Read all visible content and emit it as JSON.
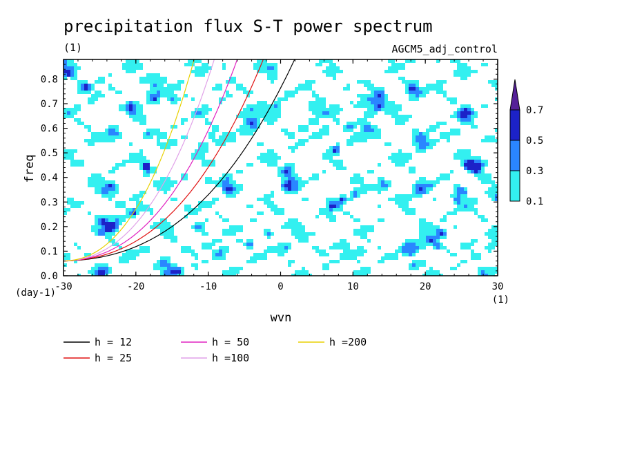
{
  "chart_data": {
    "type": "heatmap",
    "title": "precipitation flux S-T power spectrum",
    "subtitle_left": "(1)",
    "subtitle_right": "AGCM5_adj_control",
    "xlabel": "wvn",
    "ylabel": "freq",
    "x_unit": "(1)",
    "y_unit": "(day-1)",
    "xlim": [
      -30,
      30
    ],
    "ylim": [
      0.0,
      0.88
    ],
    "xticks": [
      "-30",
      "-20",
      "-10",
      "0",
      "10",
      "20",
      "30"
    ],
    "yticks": [
      "0.0",
      "0.1",
      "0.2",
      "0.3",
      "0.4",
      "0.5",
      "0.6",
      "0.7",
      "0.8"
    ],
    "colorbar": {
      "levels": [
        "0.1",
        "0.3",
        "0.5",
        "0.7"
      ],
      "colors": [
        "#33f0f0",
        "#2a86ff",
        "#1c22c8",
        "#552098"
      ]
    },
    "dispersion_curves": [
      {
        "name": "h = 12",
        "h": 12,
        "color": "#000000"
      },
      {
        "name": "h = 25",
        "h": 25,
        "color": "#e01010"
      },
      {
        "name": "h = 50",
        "h": 50,
        "color": "#e020c0"
      },
      {
        "name": "h =100",
        "h": 100,
        "color": "#e0a0e8"
      },
      {
        "name": "h =200",
        "h": 200,
        "color": "#e8d000"
      }
    ]
  }
}
